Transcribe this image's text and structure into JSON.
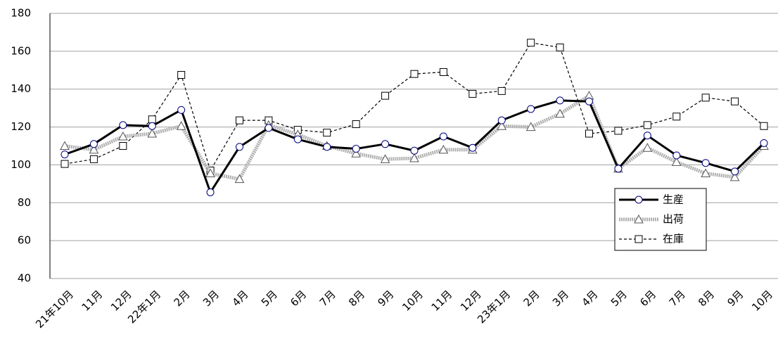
{
  "chart_data": {
    "type": "line",
    "categories": [
      "21年10月",
      "11月",
      "12月",
      "22年1月",
      "2月",
      "3月",
      "4月",
      "5月",
      "6月",
      "7月",
      "8月",
      "9月",
      "10月",
      "11月",
      "12月",
      "23年1月",
      "2月",
      "3月",
      "4月",
      "5月",
      "6月",
      "7月",
      "8月",
      "9月",
      "10月"
    ],
    "series": [
      {
        "name": "生産",
        "color": "#000000",
        "values": [
          105.5,
          111,
          121,
          120.5,
          129,
          85.5,
          109.5,
          119.5,
          113.5,
          109.5,
          108.5,
          111,
          107.5,
          115,
          109,
          123.5,
          129.5,
          134,
          133.5,
          98,
          115.5,
          105,
          101,
          96.5,
          111.5
        ]
      },
      {
        "name": "出荷",
        "color": "#909090",
        "values": [
          110,
          108,
          115,
          116.5,
          120.5,
          95.5,
          92.5,
          121,
          116,
          110,
          106,
          103,
          103.5,
          108,
          108,
          120.5,
          120,
          127,
          136.5,
          98,
          109,
          101.5,
          95.5,
          93.5,
          110
        ]
      },
      {
        "name": "在庫",
        "color": "#000000",
        "values": [
          100.5,
          103,
          110,
          124,
          147.5,
          97,
          123.5,
          123.5,
          118.5,
          117,
          121.5,
          136.5,
          148,
          149,
          137.5,
          139,
          164.5,
          162,
          116.5,
          118,
          121,
          125.5,
          135.5,
          133.5,
          120.5
        ]
      }
    ],
    "ylim": [
      40,
      180
    ],
    "yticks": [
      40,
      60,
      80,
      100,
      120,
      140,
      160,
      180
    ],
    "grid": true
  }
}
